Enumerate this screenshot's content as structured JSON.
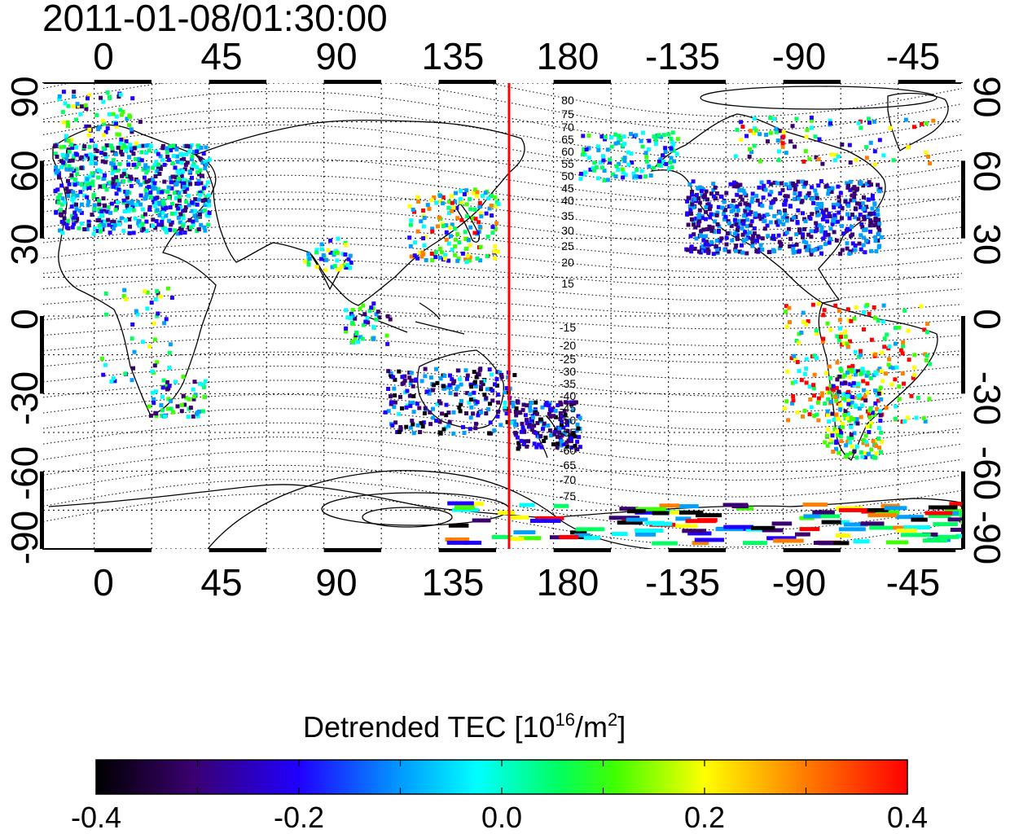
{
  "timestamp": "2011-01-08/01:30:00",
  "map": {
    "lon_ticks": [
      "0",
      "45",
      "90",
      "135",
      "180",
      "-135",
      "-90",
      "-45"
    ],
    "lat_ticks": [
      "90",
      "60",
      "30",
      "0",
      "-30",
      "-60",
      "-90"
    ],
    "contour_labels": [
      "80",
      "75",
      "70",
      "65",
      "60",
      "55",
      "50",
      "45",
      "40",
      "35",
      "30",
      "25",
      "20",
      "15",
      "-15",
      "-20",
      "-25",
      "-30",
      "-35",
      "-40",
      "-45",
      "-50",
      "-55",
      "-60",
      "-65",
      "-70",
      "-75"
    ],
    "meridian_line_lon": 157.5,
    "meridian_line_color": "#ff0000",
    "grid": "dotted",
    "lon_range": [
      -20,
      340
    ],
    "lat_range": [
      -90,
      90
    ]
  },
  "colorbar": {
    "title_prefix": "Detrended TEC  [10",
    "title_exp1": "16",
    "title_mid": "/m",
    "title_exp2": "2",
    "title_suffix": "]",
    "ticks": [
      "-0.4",
      "-0.2",
      "0.0",
      "0.2",
      "0.4"
    ],
    "min": -0.4,
    "max": 0.4,
    "colormap": [
      "#000000",
      "#3a0070",
      "#2000ff",
      "#00a0ff",
      "#00ffff",
      "#00ff60",
      "#40ff00",
      "#ffff00",
      "#ff8000",
      "#ff0000"
    ]
  }
}
